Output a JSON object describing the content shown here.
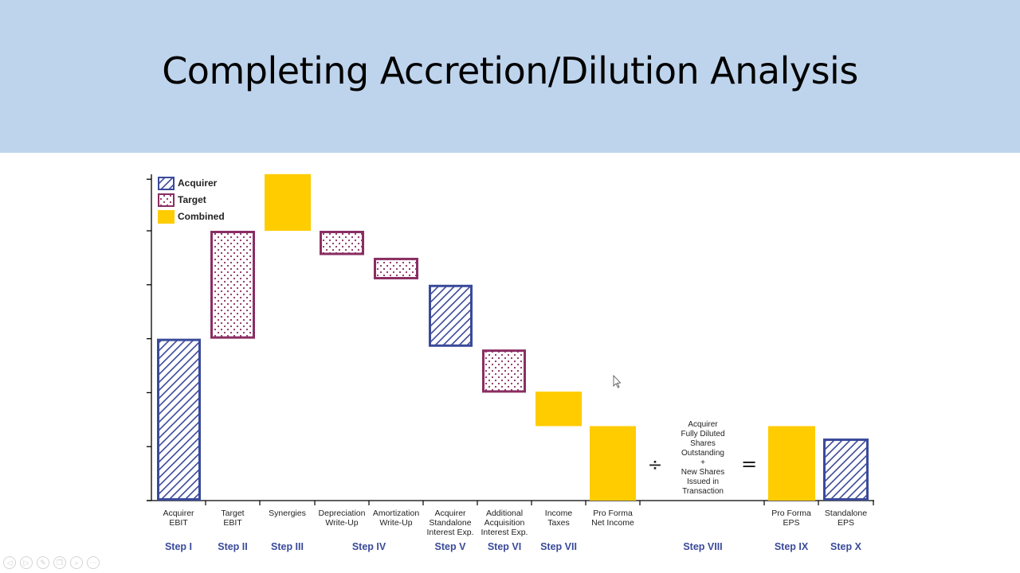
{
  "slide": {
    "title": "Completing Accretion/Dilution Analysis"
  },
  "colors": {
    "acquirer": "#3a4a9a",
    "target": "#8a2e62",
    "combined": "#ffcc00",
    "step_label": "#3a4a9a",
    "band": "#bed4ec"
  },
  "chart_data": {
    "type": "bar",
    "subtype": "waterfall",
    "legend": [
      {
        "name": "Acquirer",
        "pattern": "hatch"
      },
      {
        "name": "Target",
        "pattern": "dots"
      },
      {
        "name": "Combined",
        "pattern": "solid"
      }
    ],
    "legend_position": "top-left",
    "ylim": [
      0,
      6
    ],
    "grid": false,
    "bars": [
      {
        "label": "Acquirer\nEBIT",
        "step": "Step I",
        "type": "acquirer",
        "bottom": 0,
        "top": 3.0
      },
      {
        "label": "Target\nEBIT",
        "step": "Step II",
        "type": "target",
        "bottom": 3.0,
        "top": 5.0
      },
      {
        "label": "Synergies",
        "step": "Step III",
        "type": "combined",
        "bottom": 5.0,
        "top": 6.05
      },
      {
        "label": "Depreciation\nWrite-Up",
        "step": "Step IV",
        "type": "target",
        "bottom": 4.55,
        "top": 5.0
      },
      {
        "label": "Amortization\nWrite-Up",
        "step": "",
        "type": "target",
        "bottom": 4.1,
        "top": 4.5
      },
      {
        "label": "Acquirer\nStandalone\nInterest Exp.",
        "step": "Step V",
        "type": "acquirer",
        "bottom": 2.85,
        "top": 4.0
      },
      {
        "label": "Additional\nAcquisition\nInterest Exp.",
        "step": "Step VI",
        "type": "target",
        "bottom": 2.0,
        "top": 2.8
      },
      {
        "label": "Income\nTaxes",
        "step": "Step VII",
        "type": "combined",
        "bottom": 1.38,
        "top": 2.02
      },
      {
        "label": "Pro Forma\nNet Income",
        "step": "",
        "type": "combined",
        "bottom": 0,
        "top": 1.38
      },
      {
        "label": "Pro Forma\nEPS",
        "step": "Step IX",
        "type": "combined",
        "bottom": 0,
        "top": 1.38
      },
      {
        "label": "Standalone\nEPS",
        "step": "Step X",
        "type": "acquirer",
        "bottom": 0,
        "top": 1.15
      }
    ],
    "operators": {
      "divide": "÷",
      "equals": "=",
      "shares_text": "Acquirer\nFully Diluted\nShares\nOutstanding\n+\nNew Shares\nIssued in\nTransaction",
      "shares_step": "Step VIII"
    }
  },
  "toolbar": {
    "icons": [
      "prev-icon",
      "next-icon",
      "pen-icon",
      "copy-icon",
      "zoom-icon",
      "more-icon"
    ],
    "glyphs": [
      "◁",
      "▷",
      "✎",
      "❐",
      "⌕",
      "⋯"
    ]
  }
}
